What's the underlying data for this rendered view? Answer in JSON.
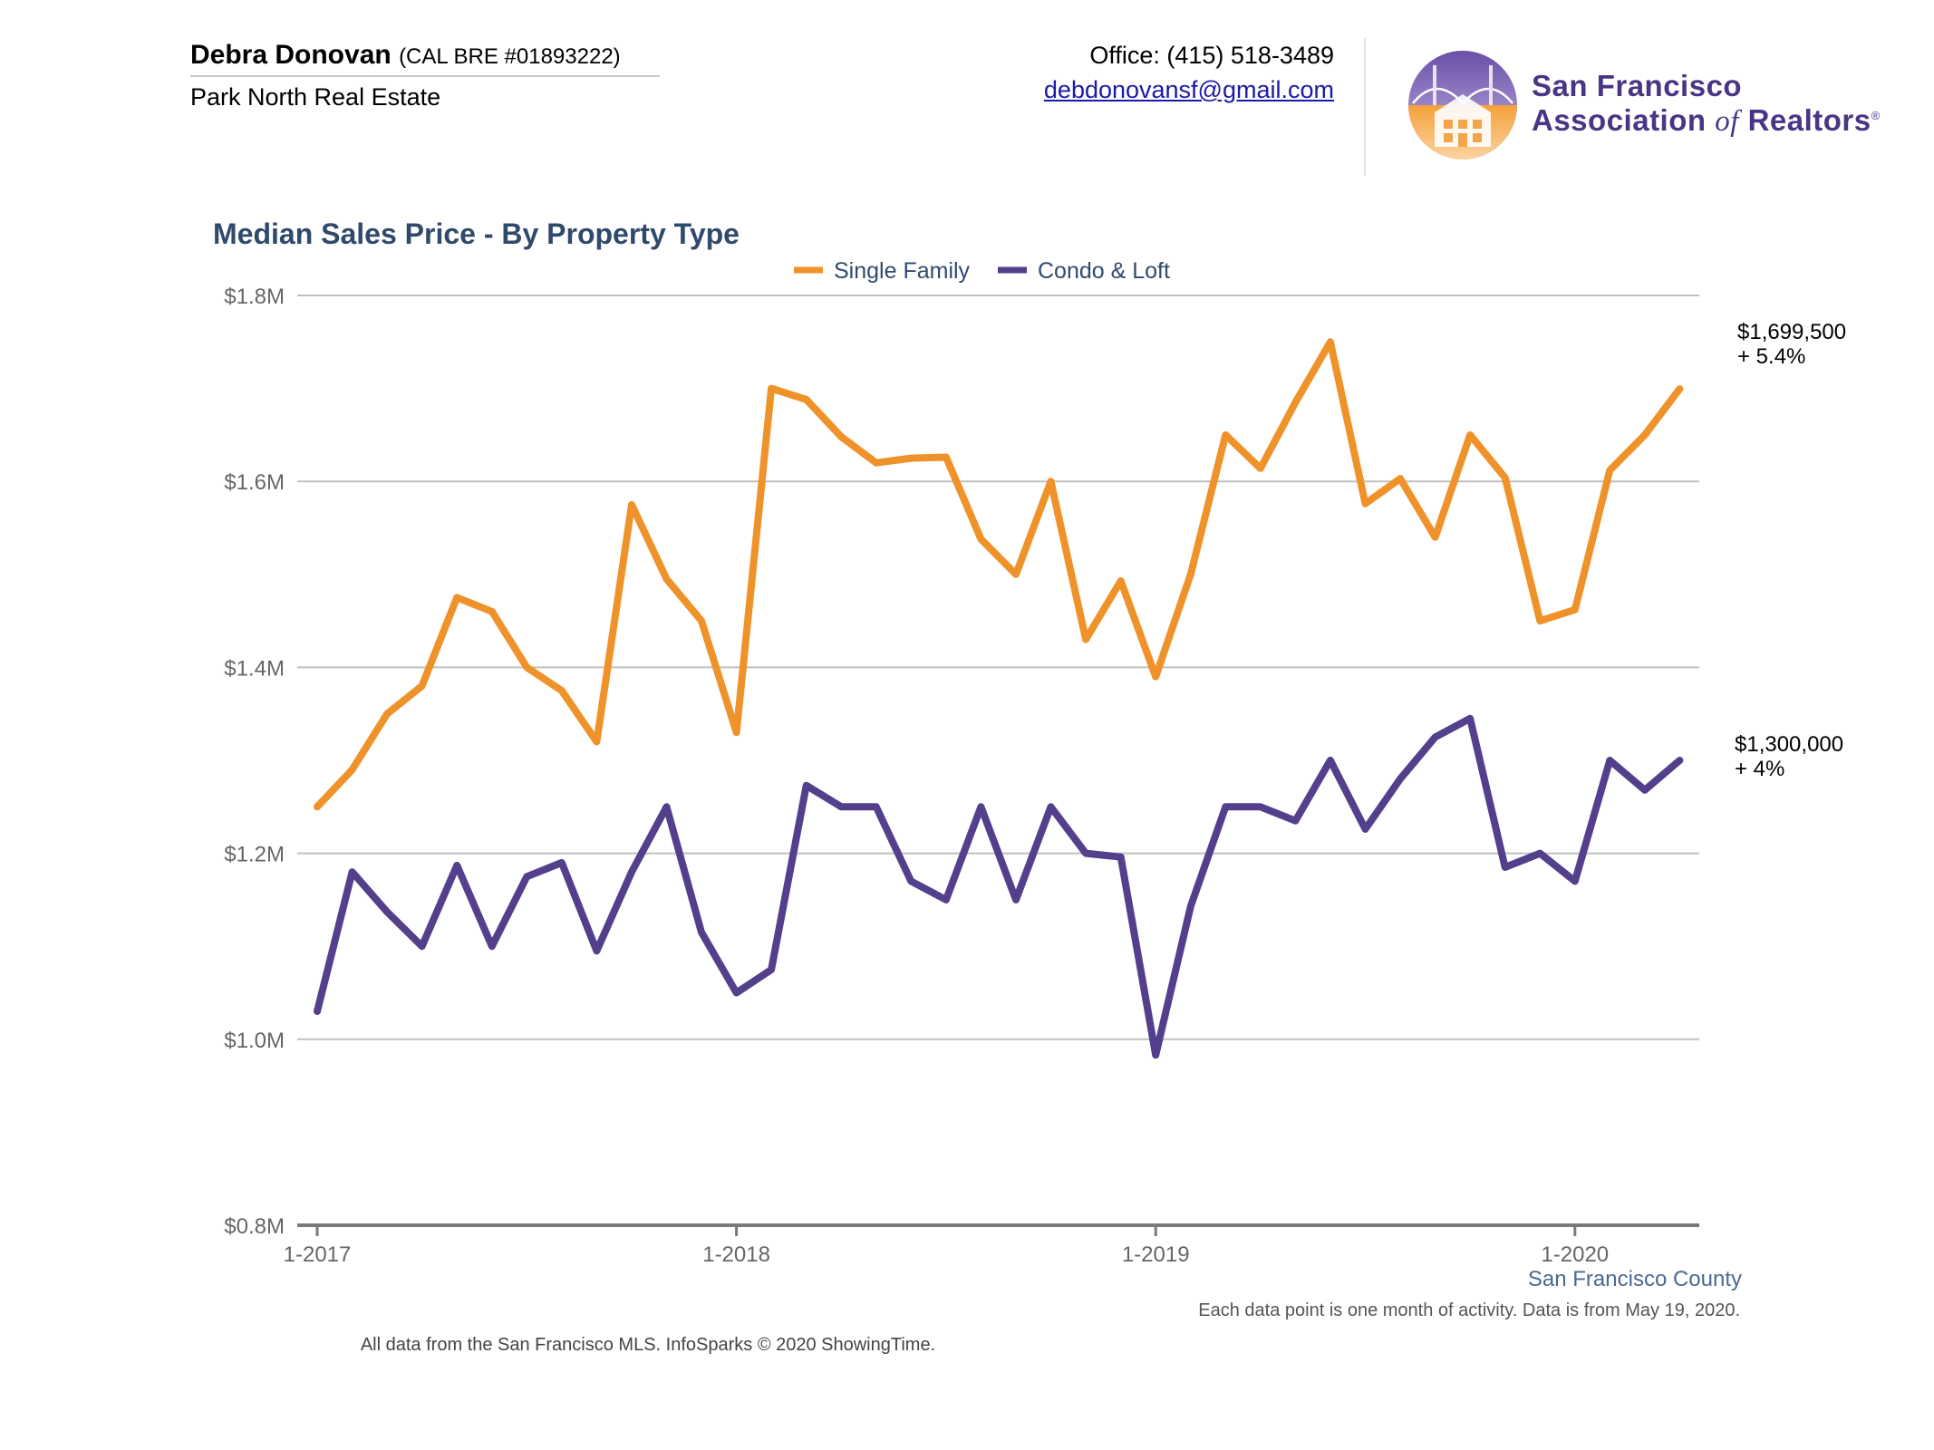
{
  "agent": {
    "name": "Debra Donovan",
    "license": "(CAL BRE #01893222)",
    "company": "Park North Real Estate",
    "office": "Office: (415) 518-3489",
    "email": "debdonovansf@gmail.com"
  },
  "association": {
    "line1": "San Francisco",
    "line2_main": "Association",
    "line2_of": "of",
    "line2_end": "Realtors",
    "registered": "®"
  },
  "colors": {
    "single_family": "#ef922a",
    "condo_loft": "#533f8c",
    "title": "#2f4a6b",
    "grid": "#c0c0c0",
    "axis": "#7a7a7a"
  },
  "chart_data": {
    "type": "line",
    "title": "Median Sales Price - By Property Type",
    "xlabel": "",
    "ylabel": "",
    "ylim": [
      0.8,
      1.8
    ],
    "y_ticks": [
      {
        "value": 1.8,
        "label": "$1.8M"
      },
      {
        "value": 1.6,
        "label": "$1.6M"
      },
      {
        "value": 1.4,
        "label": "$1.4M"
      },
      {
        "value": 1.2,
        "label": "$1.2M"
      },
      {
        "value": 1.0,
        "label": "$1.0M"
      },
      {
        "value": 0.8,
        "label": "$0.8M"
      }
    ],
    "x": [
      "1-2017",
      "2-2017",
      "3-2017",
      "4-2017",
      "5-2017",
      "6-2017",
      "7-2017",
      "8-2017",
      "9-2017",
      "10-2017",
      "11-2017",
      "12-2017",
      "1-2018",
      "2-2018",
      "3-2018",
      "4-2018",
      "5-2018",
      "6-2018",
      "7-2018",
      "8-2018",
      "9-2018",
      "10-2018",
      "11-2018",
      "12-2018",
      "1-2019",
      "2-2019",
      "3-2019",
      "4-2019",
      "5-2019",
      "6-2019",
      "7-2019",
      "8-2019",
      "9-2019",
      "10-2019",
      "11-2019",
      "12-2019",
      "1-2020",
      "2-2020",
      "3-2020",
      "4-2020"
    ],
    "x_tick_labels": [
      "1-2017",
      "1-2018",
      "1-2019",
      "1-2020"
    ],
    "grid": true,
    "legend_position": "top-center",
    "series": [
      {
        "name": "Single Family",
        "values": [
          1.25,
          1.29,
          1.35,
          1.38,
          1.475,
          1.46,
          1.4,
          1.375,
          1.32,
          1.575,
          1.495,
          1.45,
          1.33,
          1.7,
          1.688,
          1.648,
          1.62,
          1.625,
          1.626,
          1.538,
          1.5,
          1.6,
          1.43,
          1.493,
          1.39,
          1.5,
          1.65,
          1.614,
          1.685,
          1.75,
          1.576,
          1.603,
          1.54,
          1.65,
          1.604,
          1.45,
          1.462,
          1.612,
          1.65,
          1.6995
        ]
      },
      {
        "name": "Condo & Loft",
        "values": [
          1.03,
          1.18,
          1.137,
          1.1,
          1.187,
          1.1,
          1.175,
          1.19,
          1.095,
          1.18,
          1.25,
          1.115,
          1.05,
          1.075,
          1.273,
          1.25,
          1.25,
          1.17,
          1.15,
          1.25,
          1.15,
          1.25,
          1.2,
          1.196,
          0.983,
          1.143,
          1.25,
          1.25,
          1.235,
          1.3,
          1.226,
          1.28,
          1.325,
          1.345,
          1.185,
          1.2,
          1.17,
          1.3,
          1.268,
          1.3
        ]
      }
    ],
    "end_labels": [
      {
        "series": "Single Family",
        "value_text": "$1,699,500",
        "change_text": "+ 5.4%"
      },
      {
        "series": "Condo & Loft",
        "value_text": "$1,300,000",
        "change_text": "+ 4%"
      }
    ]
  },
  "footer": {
    "county": "San Francisco County",
    "footnote": "Each data point is one month of activity. Data is from May 19, 2020.",
    "source": "All data from the San Francisco MLS. InfoSparks © 2020 ShowingTime."
  }
}
